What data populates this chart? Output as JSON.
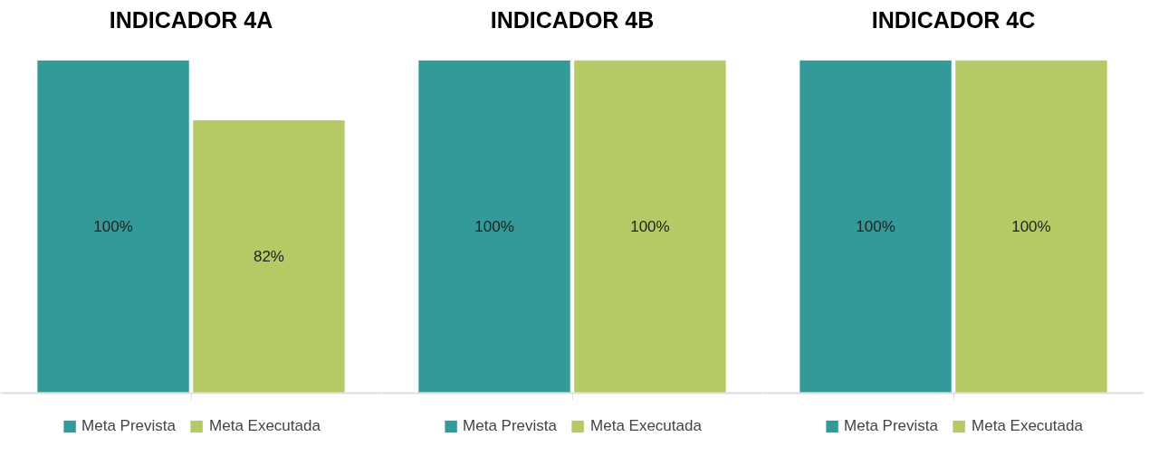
{
  "chart_data": [
    {
      "type": "bar",
      "title": "INDICADOR 4A",
      "categories": [
        null
      ],
      "legend": "bottom",
      "grid": false,
      "series": [
        {
          "name": "Meta Prevista",
          "color": "#339999",
          "values": [
            100
          ],
          "value_labels": [
            "100%"
          ]
        },
        {
          "name": "Meta Executada",
          "color": "#b5c965",
          "values": [
            82
          ],
          "value_labels": [
            "82%"
          ]
        }
      ]
    },
    {
      "type": "bar",
      "title": "INDICADOR 4B",
      "categories": [
        null
      ],
      "legend": "bottom",
      "grid": false,
      "series": [
        {
          "name": "Meta Prevista",
          "color": "#339999",
          "values": [
            100
          ],
          "value_labels": [
            "100%"
          ]
        },
        {
          "name": "Meta Executada",
          "color": "#b5c965",
          "values": [
            100
          ],
          "value_labels": [
            "100%"
          ]
        }
      ]
    },
    {
      "type": "bar",
      "title": "INDICADOR 4C",
      "categories": [
        null
      ],
      "legend": "bottom",
      "grid": false,
      "series": [
        {
          "name": "Meta Prevista",
          "color": "#339999",
          "values": [
            100
          ],
          "value_labels": [
            "100%"
          ]
        },
        {
          "name": "Meta Executada",
          "color": "#b5c965",
          "values": [
            100
          ],
          "value_labels": [
            "100%"
          ]
        }
      ]
    }
  ]
}
